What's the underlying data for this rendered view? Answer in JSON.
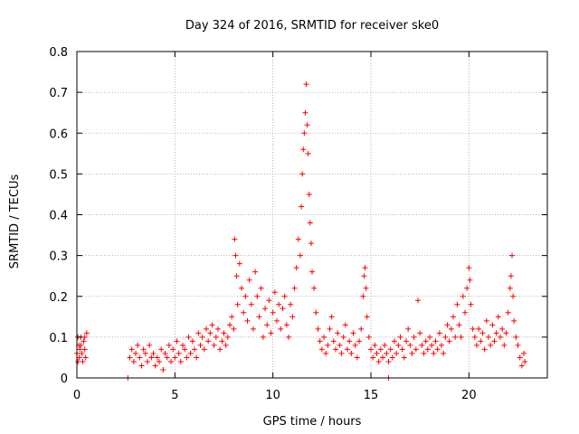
{
  "chart_data": {
    "type": "scatter",
    "title": "Day 324 of 2016, SRMTID for receiver ske0",
    "xlabel": "GPS time / hours",
    "ylabel": "SRMTID / TECUs",
    "xlim": [
      0,
      24
    ],
    "ylim": [
      0,
      0.8
    ],
    "xticks": [
      0,
      5,
      10,
      15,
      20
    ],
    "yticks": [
      0,
      0.1,
      0.2,
      0.3,
      0.4,
      0.5,
      0.6,
      0.7,
      0.8
    ],
    "xtick_labels": [
      "0",
      "5",
      "10",
      "15",
      "20"
    ],
    "ytick_labels": [
      "0",
      "0.1",
      "0.2",
      "0.3",
      "0.4",
      "0.5",
      "0.6",
      "0.7",
      "0.8"
    ],
    "grid": true,
    "marker": "+",
    "color": "#ff0000",
    "series": [
      {
        "name": "SRMTID",
        "points": [
          [
            0.0,
            0.06
          ],
          [
            0.05,
            0.1
          ],
          [
            0.1,
            0.08
          ],
          [
            0.12,
            0.05
          ],
          [
            0.15,
            0.07
          ],
          [
            0.2,
            0.1
          ],
          [
            0.25,
            0.06
          ],
          [
            0.3,
            0.04
          ],
          [
            0.35,
            0.09
          ],
          [
            0.4,
            0.07
          ],
          [
            0.45,
            0.05
          ],
          [
            0.5,
            0.11
          ],
          [
            0.05,
            0.04
          ],
          [
            0.2,
            0.08
          ],
          [
            0.4,
            0.1
          ],
          [
            2.6,
            0.0
          ],
          [
            15.9,
            0.0
          ],
          [
            2.7,
            0.05
          ],
          [
            2.8,
            0.07
          ],
          [
            2.9,
            0.04
          ],
          [
            3.0,
            0.06
          ],
          [
            3.1,
            0.08
          ],
          [
            3.2,
            0.05
          ],
          [
            3.3,
            0.03
          ],
          [
            3.4,
            0.07
          ],
          [
            3.5,
            0.06
          ],
          [
            3.6,
            0.04
          ],
          [
            3.7,
            0.08
          ],
          [
            3.8,
            0.05
          ],
          [
            3.9,
            0.06
          ],
          [
            4.0,
            0.03
          ],
          [
            4.1,
            0.05
          ],
          [
            4.2,
            0.04
          ],
          [
            4.3,
            0.07
          ],
          [
            4.4,
            0.02
          ],
          [
            4.5,
            0.06
          ],
          [
            4.6,
            0.05
          ],
          [
            4.7,
            0.08
          ],
          [
            4.8,
            0.04
          ],
          [
            4.9,
            0.07
          ],
          [
            5.0,
            0.05
          ],
          [
            5.1,
            0.09
          ],
          [
            5.2,
            0.06
          ],
          [
            5.3,
            0.04
          ],
          [
            5.4,
            0.08
          ],
          [
            5.5,
            0.07
          ],
          [
            5.6,
            0.05
          ],
          [
            5.7,
            0.1
          ],
          [
            5.8,
            0.06
          ],
          [
            5.9,
            0.09
          ],
          [
            6.0,
            0.07
          ],
          [
            6.1,
            0.05
          ],
          [
            6.2,
            0.11
          ],
          [
            6.3,
            0.08
          ],
          [
            6.4,
            0.1
          ],
          [
            6.5,
            0.07
          ],
          [
            6.6,
            0.12
          ],
          [
            6.7,
            0.09
          ],
          [
            6.8,
            0.11
          ],
          [
            6.9,
            0.13
          ],
          [
            7.0,
            0.08
          ],
          [
            7.1,
            0.1
          ],
          [
            7.2,
            0.12
          ],
          [
            7.3,
            0.07
          ],
          [
            7.4,
            0.09
          ],
          [
            7.5,
            0.11
          ],
          [
            7.6,
            0.08
          ],
          [
            7.7,
            0.1
          ],
          [
            7.8,
            0.13
          ],
          [
            7.9,
            0.15
          ],
          [
            8.0,
            0.12
          ],
          [
            8.05,
            0.34
          ],
          [
            8.1,
            0.3
          ],
          [
            8.15,
            0.25
          ],
          [
            8.2,
            0.18
          ],
          [
            8.3,
            0.28
          ],
          [
            8.4,
            0.22
          ],
          [
            8.5,
            0.16
          ],
          [
            8.6,
            0.2
          ],
          [
            8.7,
            0.14
          ],
          [
            8.8,
            0.24
          ],
          [
            8.9,
            0.18
          ],
          [
            9.0,
            0.12
          ],
          [
            9.1,
            0.26
          ],
          [
            9.2,
            0.2
          ],
          [
            9.3,
            0.15
          ],
          [
            9.4,
            0.22
          ],
          [
            9.5,
            0.1
          ],
          [
            9.6,
            0.17
          ],
          [
            9.7,
            0.13
          ],
          [
            9.8,
            0.19
          ],
          [
            9.9,
            0.11
          ],
          [
            10.0,
            0.16
          ],
          [
            10.1,
            0.21
          ],
          [
            10.2,
            0.14
          ],
          [
            10.3,
            0.18
          ],
          [
            10.4,
            0.12
          ],
          [
            10.5,
            0.17
          ],
          [
            10.6,
            0.2
          ],
          [
            10.7,
            0.13
          ],
          [
            10.8,
            0.1
          ],
          [
            10.9,
            0.18
          ],
          [
            11.0,
            0.15
          ],
          [
            11.1,
            0.22
          ],
          [
            11.2,
            0.27
          ],
          [
            11.3,
            0.34
          ],
          [
            11.4,
            0.3
          ],
          [
            11.45,
            0.42
          ],
          [
            11.5,
            0.5
          ],
          [
            11.55,
            0.56
          ],
          [
            11.6,
            0.6
          ],
          [
            11.65,
            0.65
          ],
          [
            11.7,
            0.72
          ],
          [
            11.75,
            0.62
          ],
          [
            11.8,
            0.55
          ],
          [
            11.85,
            0.45
          ],
          [
            11.9,
            0.38
          ],
          [
            11.95,
            0.33
          ],
          [
            12.0,
            0.26
          ],
          [
            12.1,
            0.22
          ],
          [
            12.2,
            0.16
          ],
          [
            12.3,
            0.12
          ],
          [
            12.4,
            0.09
          ],
          [
            12.5,
            0.07
          ],
          [
            12.6,
            0.1
          ],
          [
            12.7,
            0.06
          ],
          [
            12.8,
            0.08
          ],
          [
            12.9,
            0.12
          ],
          [
            13.0,
            0.15
          ],
          [
            13.1,
            0.09
          ],
          [
            13.2,
            0.07
          ],
          [
            13.3,
            0.11
          ],
          [
            13.4,
            0.08
          ],
          [
            13.5,
            0.06
          ],
          [
            13.6,
            0.1
          ],
          [
            13.7,
            0.13
          ],
          [
            13.8,
            0.07
          ],
          [
            13.9,
            0.09
          ],
          [
            14.0,
            0.06
          ],
          [
            14.1,
            0.11
          ],
          [
            14.2,
            0.08
          ],
          [
            14.3,
            0.05
          ],
          [
            14.4,
            0.09
          ],
          [
            14.5,
            0.12
          ],
          [
            14.6,
            0.2
          ],
          [
            14.65,
            0.25
          ],
          [
            14.7,
            0.27
          ],
          [
            14.75,
            0.22
          ],
          [
            14.8,
            0.15
          ],
          [
            14.9,
            0.1
          ],
          [
            15.0,
            0.07
          ],
          [
            15.1,
            0.05
          ],
          [
            15.2,
            0.08
          ],
          [
            15.3,
            0.06
          ],
          [
            15.4,
            0.04
          ],
          [
            15.5,
            0.07
          ],
          [
            15.6,
            0.05
          ],
          [
            15.7,
            0.08
          ],
          [
            15.8,
            0.06
          ],
          [
            15.9,
            0.04
          ],
          [
            16.0,
            0.07
          ],
          [
            16.1,
            0.05
          ],
          [
            16.2,
            0.09
          ],
          [
            16.3,
            0.06
          ],
          [
            16.4,
            0.08
          ],
          [
            16.5,
            0.1
          ],
          [
            16.6,
            0.07
          ],
          [
            16.7,
            0.05
          ],
          [
            16.8,
            0.09
          ],
          [
            16.9,
            0.12
          ],
          [
            17.0,
            0.08
          ],
          [
            17.1,
            0.06
          ],
          [
            17.2,
            0.1
          ],
          [
            17.3,
            0.07
          ],
          [
            17.4,
            0.19
          ],
          [
            17.5,
            0.11
          ],
          [
            17.6,
            0.08
          ],
          [
            17.7,
            0.06
          ],
          [
            17.8,
            0.09
          ],
          [
            17.9,
            0.07
          ],
          [
            18.0,
            0.1
          ],
          [
            18.1,
            0.08
          ],
          [
            18.2,
            0.06
          ],
          [
            18.3,
            0.09
          ],
          [
            18.4,
            0.07
          ],
          [
            18.5,
            0.11
          ],
          [
            18.6,
            0.08
          ],
          [
            18.7,
            0.06
          ],
          [
            18.8,
            0.1
          ],
          [
            18.9,
            0.13
          ],
          [
            19.0,
            0.09
          ],
          [
            19.1,
            0.12
          ],
          [
            19.2,
            0.15
          ],
          [
            19.3,
            0.1
          ],
          [
            19.4,
            0.18
          ],
          [
            19.5,
            0.13
          ],
          [
            19.6,
            0.1
          ],
          [
            19.7,
            0.2
          ],
          [
            19.8,
            0.16
          ],
          [
            19.9,
            0.22
          ],
          [
            20.0,
            0.27
          ],
          [
            20.05,
            0.24
          ],
          [
            20.1,
            0.18
          ],
          [
            20.2,
            0.12
          ],
          [
            20.3,
            0.1
          ],
          [
            20.4,
            0.08
          ],
          [
            20.5,
            0.12
          ],
          [
            20.6,
            0.09
          ],
          [
            20.7,
            0.11
          ],
          [
            20.8,
            0.07
          ],
          [
            20.9,
            0.14
          ],
          [
            21.0,
            0.1
          ],
          [
            21.1,
            0.08
          ],
          [
            21.2,
            0.13
          ],
          [
            21.3,
            0.09
          ],
          [
            21.4,
            0.11
          ],
          [
            21.5,
            0.15
          ],
          [
            21.6,
            0.1
          ],
          [
            21.7,
            0.12
          ],
          [
            21.8,
            0.08
          ],
          [
            21.9,
            0.11
          ],
          [
            22.0,
            0.16
          ],
          [
            22.1,
            0.22
          ],
          [
            22.15,
            0.25
          ],
          [
            22.2,
            0.3
          ],
          [
            22.25,
            0.2
          ],
          [
            22.3,
            0.14
          ],
          [
            22.4,
            0.1
          ],
          [
            22.5,
            0.08
          ],
          [
            22.6,
            0.05
          ],
          [
            22.7,
            0.03
          ],
          [
            22.8,
            0.06
          ],
          [
            22.85,
            0.04
          ]
        ]
      }
    ]
  }
}
